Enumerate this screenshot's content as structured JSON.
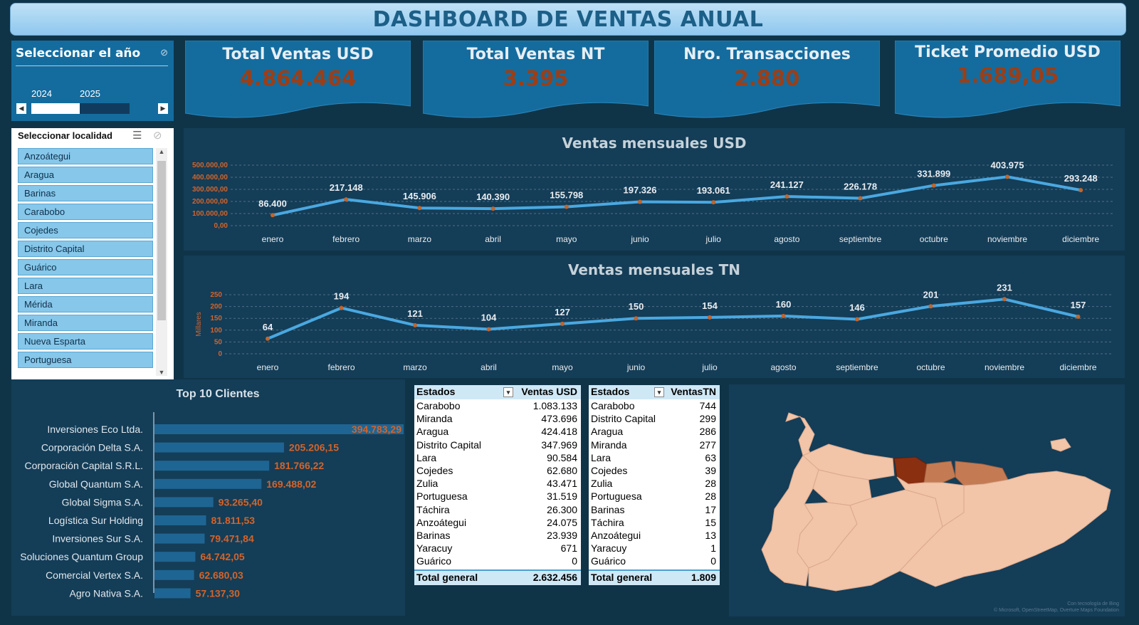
{
  "title": "DASHBOARD DE VENTAS ANUAL",
  "year_slicer": {
    "header": "Seleccionar el año",
    "years": [
      "2024",
      "2025"
    ],
    "selected": "2024"
  },
  "loc_slicer": {
    "header": "Seleccionar localidad",
    "items": [
      "Anzoátegui",
      "Aragua",
      "Barinas",
      "Carabobo",
      "Cojedes",
      "Distrito Capital",
      "Guárico",
      "Lara",
      "Mérida",
      "Miranda",
      "Nueva Esparta",
      "Portuguesa"
    ]
  },
  "kpis": [
    {
      "label": "Total Ventas USD",
      "value": "4.864.464"
    },
    {
      "label": "Total Ventas NT",
      "value": "3.395"
    },
    {
      "label": "Nro. Transacciones",
      "value": "2.880"
    },
    {
      "label": "Ticket Promedio USD",
      "value": "1.689,05"
    }
  ],
  "chart_data": [
    {
      "type": "line",
      "title": "Ventas mensuales USD",
      "x": [
        "enero",
        "febrero",
        "marzo",
        "abril",
        "mayo",
        "junio",
        "julio",
        "agosto",
        "septiembre",
        "octubre",
        "noviembre",
        "diciembre"
      ],
      "values": [
        86400,
        217148,
        145906,
        140390,
        155798,
        197326,
        193061,
        241127,
        226178,
        331899,
        403975,
        293248
      ],
      "data_labels": [
        "86.400",
        "217.148",
        "145.906",
        "140.390",
        "155.798",
        "197.326",
        "193.061",
        "241.127",
        "226.178",
        "331.899",
        "403.975",
        "293.248"
      ],
      "yticks": [
        "0,00",
        "100.000,00",
        "200.000,00",
        "300.000,00",
        "400.000,00",
        "500.000,00"
      ],
      "ylim": [
        0,
        500000
      ],
      "ylabel": "",
      "grid": true,
      "line_color": "#4aa8e0",
      "marker_color": "#c0652e"
    },
    {
      "type": "line",
      "title": "Ventas mensuales TN",
      "x": [
        "enero",
        "febrero",
        "marzo",
        "abril",
        "mayo",
        "junio",
        "julio",
        "agosto",
        "septiembre",
        "octubre",
        "noviembre",
        "diciembre"
      ],
      "values": [
        64,
        194,
        121,
        104,
        127,
        150,
        154,
        160,
        146,
        201,
        231,
        157
      ],
      "data_labels": [
        "64",
        "194",
        "121",
        "104",
        "127",
        "150",
        "154",
        "160",
        "146",
        "201",
        "231",
        "157"
      ],
      "yticks": [
        "0",
        "50",
        "100",
        "150",
        "200",
        "250"
      ],
      "ylim": [
        0,
        250
      ],
      "ylabel": "Millares",
      "grid": true,
      "line_color": "#4aa8e0",
      "marker_color": "#c0652e"
    },
    {
      "type": "bar",
      "title": "Top 10 Clientes",
      "categories": [
        "Inversiones Eco Ltda.",
        "Corporación Delta S.A.",
        "Corporación Capital S.R.L.",
        "Global Quantum S.A.",
        "Global Sigma S.A.",
        "Logística Sur Holding",
        "Inversiones Sur S.A.",
        "Soluciones Quantum Group",
        "Comercial Vertex S.A.",
        "Agro Nativa S.A."
      ],
      "values": [
        394783.29,
        205206.15,
        181766.22,
        169488.02,
        93265.4,
        81811.53,
        79471.84,
        64742.05,
        62680.03,
        57137.3
      ],
      "data_labels": [
        "394.783,29",
        "205.206,15",
        "181.766,22",
        "169.488,02",
        "93.265,40",
        "81.811,53",
        "79.471,84",
        "64.742,05",
        "62.680,03",
        "57.137,30"
      ],
      "bar_color": "#1f6593",
      "label_color": "#d3642a"
    }
  ],
  "table_usd": {
    "headers": [
      "Estados",
      "Ventas USD"
    ],
    "rows": [
      [
        "Carabobo",
        "1.083.133"
      ],
      [
        "Miranda",
        "473.696"
      ],
      [
        "Aragua",
        "424.418"
      ],
      [
        "Distrito Capital",
        "347.969"
      ],
      [
        "Lara",
        "90.584"
      ],
      [
        "Cojedes",
        "62.680"
      ],
      [
        "Zulia",
        "43.471"
      ],
      [
        "Portuguesa",
        "31.519"
      ],
      [
        "Táchira",
        "26.300"
      ],
      [
        "Anzoátegui",
        "24.075"
      ],
      [
        "Barinas",
        "23.939"
      ],
      [
        "Yaracuy",
        "671"
      ],
      [
        "Guárico",
        "0"
      ]
    ],
    "total": [
      "Total general",
      "2.632.456"
    ]
  },
  "table_tn": {
    "headers": [
      "Estados",
      "VentasTN"
    ],
    "rows": [
      [
        "Carabobo",
        "744"
      ],
      [
        "Distrito Capital",
        "299"
      ],
      [
        "Aragua",
        "286"
      ],
      [
        "Miranda",
        "277"
      ],
      [
        "Lara",
        "63"
      ],
      [
        "Cojedes",
        "39"
      ],
      [
        "Zulia",
        "28"
      ],
      [
        "Portuguesa",
        "28"
      ],
      [
        "Barinas",
        "17"
      ],
      [
        "Táchira",
        "15"
      ],
      [
        "Anzoátegui",
        "13"
      ],
      [
        "Yaracuy",
        "1"
      ],
      [
        "Guárico",
        "0"
      ]
    ],
    "total": [
      "Total general",
      "1.809"
    ]
  },
  "map": {
    "credit_line1": "Con tecnología de Bing",
    "credit_line2": "© Microsoft, OpenStreetMap, Overture Maps Foundation",
    "colors": {
      "low": "#f2c4a8",
      "mid": "#d99b7a",
      "high": "#c47b54",
      "max": "#8a2f10"
    }
  }
}
